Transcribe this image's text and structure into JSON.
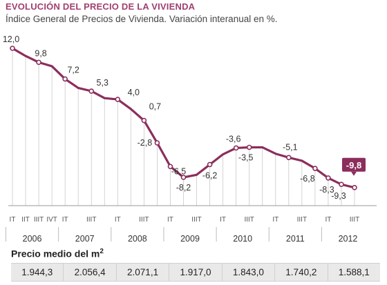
{
  "title": "EVOLUCIÓN DEL PRECIO DE LA VIVIENDA",
  "subtitle": "Índice General de Precios de Vivienda. Variación interanual en %.",
  "colors": {
    "line": "#8b2e5c",
    "title": "#a04070",
    "grid": "#c8c8c8",
    "highlight_bg": "#8b2e5c"
  },
  "chart_data": {
    "type": "line",
    "x": [
      "2006-IT",
      "2006-IIT",
      "2006-IIIT",
      "2006-IVT",
      "2007-IT",
      "2007-IIT",
      "2007-IIIT",
      "2007-IVT",
      "2008-IT",
      "2008-IIT",
      "2008-IIIT",
      "2008-IVT",
      "2009-IT",
      "2009-IIT",
      "2009-IIIT",
      "2009-IVT",
      "2010-IT",
      "2010-IIT",
      "2010-IIIT",
      "2010-IVT",
      "2011-IT",
      "2011-IIT",
      "2011-IIIT",
      "2011-IVT",
      "2012-IT",
      "2012-IIT",
      "2012-IIIT"
    ],
    "values": [
      12.0,
      10.8,
      9.8,
      9.2,
      7.2,
      5.8,
      5.3,
      4.2,
      4.0,
      2.5,
      0.7,
      -2.8,
      -6.5,
      -8.2,
      -7.8,
      -6.2,
      -4.6,
      -3.6,
      -3.5,
      -3.5,
      -4.5,
      -5.1,
      -5.6,
      -6.8,
      -8.3,
      -9.3,
      -9.8
    ],
    "markers": [
      {
        "index": 0,
        "label": "12,0"
      },
      {
        "index": 2,
        "label": "9,8"
      },
      {
        "index": 4,
        "label": "7,2"
      },
      {
        "index": 6,
        "label": "5,3"
      },
      {
        "index": 8,
        "label": "4,0"
      },
      {
        "index": 10,
        "label": "0,7"
      },
      {
        "index": 11,
        "label": "-2,8"
      },
      {
        "index": 12,
        "label": "-6,5"
      },
      {
        "index": 13,
        "label": "-8,2"
      },
      {
        "index": 15,
        "label": "-6,2"
      },
      {
        "index": 17,
        "label": "-3,6"
      },
      {
        "index": 18,
        "label": "-3,5"
      },
      {
        "index": 21,
        "label": "-5,1"
      },
      {
        "index": 23,
        "label": "-6,8"
      },
      {
        "index": 24,
        "label": "-8,3"
      },
      {
        "index": 25,
        "label": "-9,3"
      },
      {
        "index": 26,
        "label": "-9,8",
        "highlight": true
      }
    ],
    "quarter_labels": [
      "IT",
      "IIT",
      "IIIT",
      "IVT",
      "IT",
      "",
      "IIIT",
      "",
      "IT",
      "",
      "IIIT",
      "",
      "IT",
      "",
      "IIIT",
      "",
      "IT",
      "",
      "IIIT",
      "",
      "IT",
      "",
      "IIIT",
      "",
      "IT",
      "",
      "IIIT"
    ],
    "years": [
      "2006",
      "2007",
      "2008",
      "2009",
      "2010",
      "2011",
      "2012"
    ],
    "ylim": [
      -10,
      12.5
    ],
    "grid": true
  },
  "price": {
    "title": "Precio medio del m",
    "title_sup": "2",
    "values": [
      "1.944,3",
      "2.056,4",
      "2.071,1",
      "1.917,0",
      "1.843,0",
      "1.740,2",
      "1.588,1"
    ]
  }
}
